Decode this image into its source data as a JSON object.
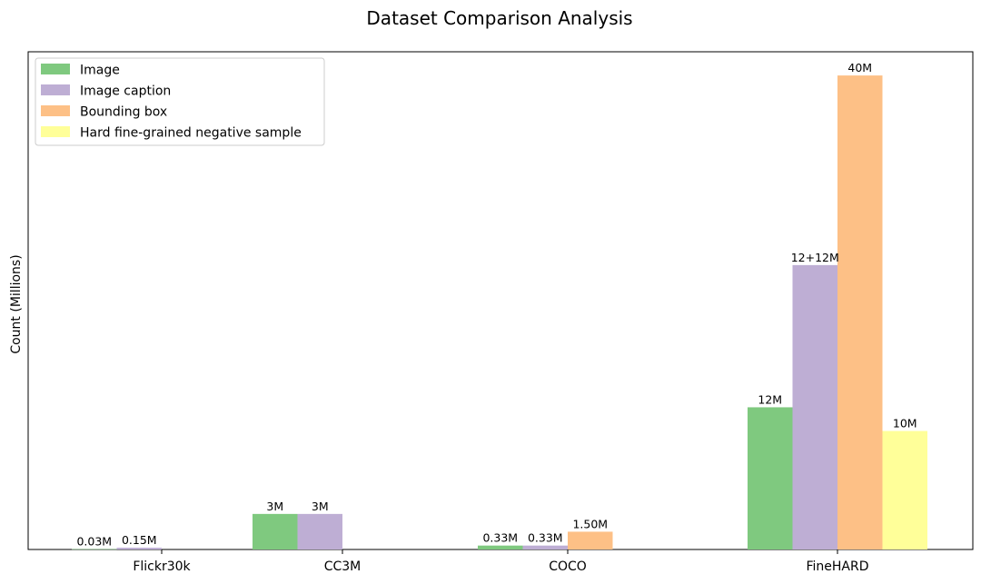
{
  "chart_data": {
    "type": "bar",
    "title": "Dataset Comparison Analysis",
    "xlabel": "",
    "ylabel": "Count (Millions)",
    "ylim": [
      0,
      42
    ],
    "grid": false,
    "legend_placement": "top-left",
    "categories": [
      "Flickr30k",
      "CC3M",
      "COCO",
      "FineHARD"
    ],
    "series": [
      {
        "name": "Image",
        "color": "#7fc97f",
        "values": [
          0.03,
          3,
          0.33,
          12
        ],
        "labels": [
          "0.03M",
          "3M",
          "0.33M",
          "12M"
        ]
      },
      {
        "name": "Image caption",
        "color": "#beaed4",
        "values": [
          0.15,
          3,
          0.33,
          24
        ],
        "labels": [
          "0.15M",
          "3M",
          "0.33M",
          "12+12M"
        ]
      },
      {
        "name": "Bounding box",
        "color": "#fdc086",
        "values": [
          0,
          0,
          1.5,
          40
        ],
        "labels": [
          "",
          "",
          "1.50M",
          "40M"
        ]
      },
      {
        "name": "Hard fine-grained negative sample",
        "color": "#ffff99",
        "values": [
          0,
          0,
          0,
          10
        ],
        "labels": [
          "",
          "",
          "",
          "10M"
        ]
      }
    ]
  }
}
